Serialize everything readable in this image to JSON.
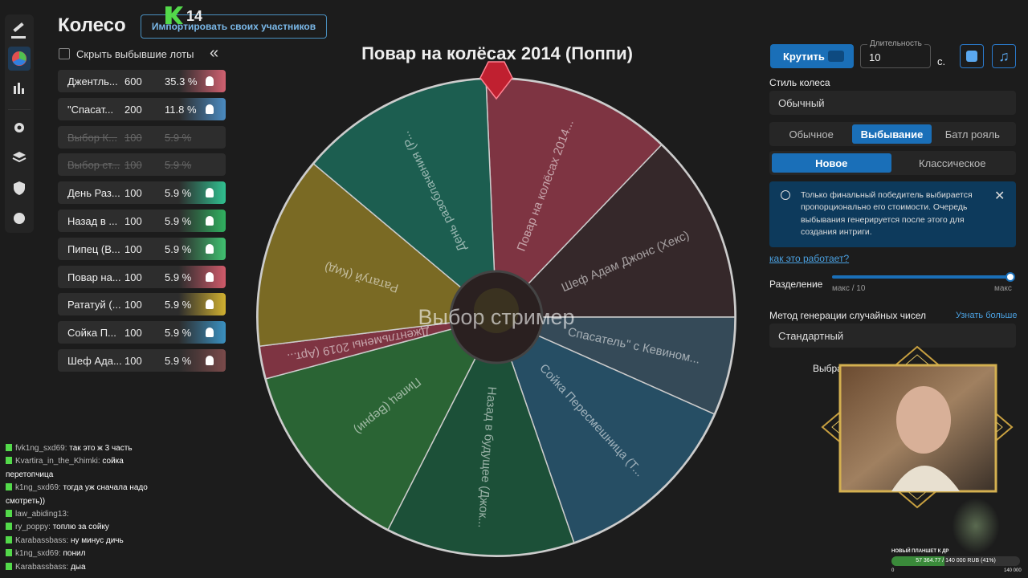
{
  "header": {
    "title": "Колесо",
    "import_button": "Импортировать своих участников",
    "logo": "14"
  },
  "hide_label": "Скрыть выбывшие лоты",
  "wheel_title": "Повар на колёсах 2014 (Поппи)",
  "lots": [
    {
      "name": "Джентль...",
      "amount": "600",
      "percent": "35.3 %",
      "eliminated": false,
      "color": "#d06070"
    },
    {
      "name": "\"Спасат...",
      "amount": "200",
      "percent": "11.8 %",
      "eliminated": false,
      "color": "#4a8ac0"
    },
    {
      "name": "Выбор К...",
      "amount": "100",
      "percent": "5.9 %",
      "eliminated": true,
      "color": "#444"
    },
    {
      "name": "Выбор ст...",
      "amount": "100",
      "percent": "5.9 %",
      "eliminated": true,
      "color": "#444"
    },
    {
      "name": "День Раз...",
      "amount": "100",
      "percent": "5.9 %",
      "eliminated": false,
      "color": "#30c090"
    },
    {
      "name": "Назад в ...",
      "amount": "100",
      "percent": "5.9 %",
      "eliminated": false,
      "color": "#30b060"
    },
    {
      "name": "Пипец (В...",
      "amount": "100",
      "percent": "5.9 %",
      "eliminated": false,
      "color": "#40c070"
    },
    {
      "name": "Повар на...",
      "amount": "100",
      "percent": "5.9 %",
      "eliminated": false,
      "color": "#d05a6a"
    },
    {
      "name": "Рататуй (...",
      "amount": "100",
      "percent": "5.9 %",
      "eliminated": false,
      "color": "#d0b030"
    },
    {
      "name": "Сойка П...",
      "amount": "100",
      "percent": "5.9 %",
      "eliminated": false,
      "color": "#3a90c0"
    },
    {
      "name": "Шеф Ада...",
      "amount": "100",
      "percent": "5.9 %",
      "eliminated": false,
      "color": "#7a4a4a"
    }
  ],
  "wheel": {
    "center_text": "Выбор стример",
    "segments": [
      {
        "label": "Повар на колёсах 2014...",
        "color": "#7e3442"
      },
      {
        "label": "Шеф Адам Джонс (Хекс)",
        "color": "#35282a"
      },
      {
        "label": "Спасатель\" с Кевином...",
        "color": "#354a58"
      },
      {
        "label": "Сойка Пересмешница (Т...",
        "color": "#264e64"
      },
      {
        "label": "Назад в будущее (Джок...",
        "color": "#1c5038"
      },
      {
        "label": "Пипец (Верни)",
        "color": "#2a6434"
      },
      {
        "label": "Джентльмены 2019 (Арт...",
        "color": "#7e3442"
      },
      {
        "label": "Рататуй (Кид)",
        "color": "#7a6a24"
      },
      {
        "label": "День разоблачения (Р...",
        "color": "#1c5e50"
      }
    ]
  },
  "controls": {
    "spin": "Крутить",
    "duration_label": "Длительность",
    "duration": "10",
    "unit": "с.",
    "style_label": "Стиль колеса",
    "style_value": "Обычный",
    "tabs": [
      "Обычное",
      "Выбывание",
      "Батл рояль"
    ],
    "active_tab": 1,
    "subtabs": [
      "Новое",
      "Классическое"
    ],
    "active_subtab": 0,
    "info": [
      "Только финальный победитель выбирается",
      "пропорционально его стоимости. Очередь",
      "выбывания генерируется после этого для",
      "создания интриги."
    ],
    "link": "как это работает?",
    "split_label": "Разделение",
    "split_min": "макс / 10",
    "split_max": "макс",
    "rng_label": "Метод генерации случайных чисел",
    "rng_link": "Узнать больше",
    "rng_value": "Стандартный",
    "chosen": "Выбра"
  },
  "chat": [
    {
      "user": "fvk1ng_sxd69:",
      "text": "так это ж 3 часть"
    },
    {
      "user": "Kvartira_in_the_Khimki:",
      "text": "сойка перетопчица"
    },
    {
      "user": "k1ng_sxd69:",
      "text": "тогда уж сначала надо смотреть))"
    },
    {
      "user": "law_abiding13:",
      "text": ""
    },
    {
      "user": "ry_poppy:",
      "text": "топлю за сойку"
    },
    {
      "user": "Karabassbass:",
      "text": "ну минус дичь"
    },
    {
      "user": "k1ng_sxd69:",
      "text": "понил"
    },
    {
      "user": "Karabassbass:",
      "text": "дыа"
    }
  ],
  "donation": {
    "goal": "НОВЫЙ ПЛАНШЕТ К ДР",
    "progress_label": "57 364.77 / 140 000 RUB (41%)",
    "progress": 41,
    "min": "0",
    "max": "140 000"
  }
}
